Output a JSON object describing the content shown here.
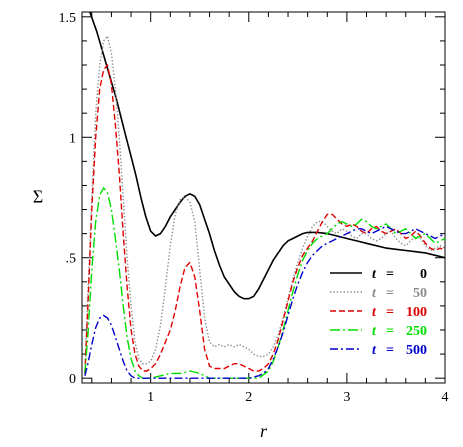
{
  "chart_data": {
    "type": "line",
    "title": "",
    "xlabel": "r",
    "ylabel": "Σ",
    "xlim": [
      0.3,
      4.0
    ],
    "ylim": [
      -0.02,
      1.52
    ],
    "xticks": [
      1,
      2,
      3,
      4
    ],
    "xtick_labels": [
      "1",
      "2",
      "3",
      "4"
    ],
    "yticks": [
      0,
      0.5,
      1.0,
      1.5
    ],
    "ytick_labels": [
      "0",
      ".5",
      "1",
      "1.5"
    ],
    "grid": false,
    "legend_position": "center-right",
    "series": [
      {
        "name": "t = 0",
        "legend_t": "t",
        "legend_eq": "=",
        "legend_val": "0",
        "color": "#000000",
        "dash": "",
        "width": 1.6,
        "x": [
          0.38,
          0.45,
          0.5,
          0.55,
          0.6,
          0.65,
          0.7,
          0.75,
          0.8,
          0.85,
          0.9,
          0.95,
          1.0,
          1.05,
          1.1,
          1.15,
          1.2,
          1.25,
          1.3,
          1.35,
          1.4,
          1.45,
          1.5,
          1.55,
          1.6,
          1.65,
          1.7,
          1.75,
          1.8,
          1.85,
          1.9,
          1.95,
          2.0,
          2.05,
          2.1,
          2.15,
          2.2,
          2.25,
          2.3,
          2.35,
          2.4,
          2.45,
          2.5,
          2.55,
          2.6,
          2.65,
          2.7,
          2.8,
          2.9,
          3.0,
          3.1,
          3.2,
          3.3,
          3.4,
          3.5,
          3.6,
          3.7,
          3.8,
          3.9,
          4.0
        ],
        "y": [
          1.52,
          1.44,
          1.37,
          1.3,
          1.23,
          1.16,
          1.08,
          1.0,
          0.92,
          0.84,
          0.75,
          0.67,
          0.61,
          0.59,
          0.6,
          0.63,
          0.67,
          0.7,
          0.73,
          0.755,
          0.765,
          0.755,
          0.72,
          0.66,
          0.6,
          0.53,
          0.47,
          0.42,
          0.39,
          0.36,
          0.34,
          0.33,
          0.33,
          0.34,
          0.37,
          0.41,
          0.45,
          0.49,
          0.52,
          0.55,
          0.57,
          0.58,
          0.59,
          0.6,
          0.605,
          0.605,
          0.605,
          0.6,
          0.59,
          0.58,
          0.57,
          0.56,
          0.55,
          0.54,
          0.535,
          0.53,
          0.525,
          0.52,
          0.51,
          0.5
        ]
      },
      {
        "name": "t = 50",
        "legend_t": "t",
        "legend_eq": "=",
        "legend_val": "50",
        "color": "#8c8c8c",
        "dash": "1.4,2",
        "width": 1.4,
        "x": [
          0.33,
          0.36,
          0.4,
          0.44,
          0.48,
          0.52,
          0.56,
          0.6,
          0.64,
          0.68,
          0.72,
          0.76,
          0.8,
          0.84,
          0.88,
          0.92,
          0.96,
          1.0,
          1.05,
          1.1,
          1.15,
          1.2,
          1.25,
          1.3,
          1.35,
          1.4,
          1.45,
          1.5,
          1.55,
          1.6,
          1.65,
          1.7,
          1.75,
          1.8,
          1.85,
          1.9,
          1.95,
          2.0,
          2.05,
          2.1,
          2.15,
          2.2,
          2.25,
          2.3,
          2.35,
          2.4,
          2.45,
          2.5,
          2.55,
          2.6,
          2.65,
          2.7,
          2.75,
          2.8,
          2.85,
          2.9,
          2.95,
          3.0,
          3.05,
          3.1,
          3.15,
          3.2,
          3.25,
          3.3,
          3.35,
          3.4,
          3.45,
          3.5,
          3.55,
          3.6,
          3.65,
          3.7,
          3.75,
          3.8,
          3.85,
          3.9,
          3.95,
          4.0
        ],
        "y": [
          0.02,
          0.35,
          0.75,
          1.1,
          1.3,
          1.4,
          1.42,
          1.35,
          1.2,
          1.0,
          0.75,
          0.5,
          0.3,
          0.15,
          0.08,
          0.06,
          0.06,
          0.07,
          0.12,
          0.22,
          0.38,
          0.55,
          0.68,
          0.74,
          0.755,
          0.73,
          0.65,
          0.45,
          0.25,
          0.15,
          0.13,
          0.14,
          0.13,
          0.14,
          0.13,
          0.14,
          0.13,
          0.12,
          0.1,
          0.09,
          0.09,
          0.1,
          0.13,
          0.18,
          0.25,
          0.33,
          0.41,
          0.48,
          0.54,
          0.59,
          0.63,
          0.65,
          0.65,
          0.63,
          0.61,
          0.6,
          0.62,
          0.61,
          0.59,
          0.58,
          0.6,
          0.6,
          0.58,
          0.57,
          0.58,
          0.6,
          0.61,
          0.58,
          0.56,
          0.55,
          0.57,
          0.59,
          0.58,
          0.55,
          0.53,
          0.54,
          0.55,
          0.54
        ]
      },
      {
        "name": "t = 100",
        "legend_t": "t",
        "legend_eq": "=",
        "legend_val": "100",
        "color": "#e00000",
        "dash": "6,3",
        "width": 1.4,
        "x": [
          0.33,
          0.36,
          0.4,
          0.44,
          0.48,
          0.52,
          0.56,
          0.6,
          0.64,
          0.68,
          0.72,
          0.76,
          0.8,
          0.84,
          0.88,
          0.92,
          0.96,
          1.0,
          1.05,
          1.1,
          1.15,
          1.2,
          1.25,
          1.3,
          1.35,
          1.4,
          1.45,
          1.5,
          1.55,
          1.6,
          1.65,
          1.7,
          1.75,
          1.8,
          1.85,
          1.9,
          1.95,
          2.0,
          2.05,
          2.1,
          2.15,
          2.2,
          2.25,
          2.3,
          2.35,
          2.4,
          2.45,
          2.5,
          2.55,
          2.6,
          2.65,
          2.7,
          2.75,
          2.8,
          2.85,
          2.9,
          2.95,
          3.0,
          3.05,
          3.1,
          3.15,
          3.2,
          3.25,
          3.3,
          3.35,
          3.4,
          3.45,
          3.5,
          3.55,
          3.6,
          3.65,
          3.7,
          3.75,
          3.8,
          3.85,
          3.9,
          3.95,
          4.0
        ],
        "y": [
          0.02,
          0.3,
          0.7,
          1.0,
          1.2,
          1.28,
          1.3,
          1.22,
          1.05,
          0.85,
          0.6,
          0.38,
          0.2,
          0.1,
          0.05,
          0.03,
          0.03,
          0.04,
          0.06,
          0.1,
          0.15,
          0.2,
          0.28,
          0.38,
          0.46,
          0.48,
          0.42,
          0.28,
          0.12,
          0.05,
          0.04,
          0.04,
          0.04,
          0.05,
          0.06,
          0.06,
          0.05,
          0.04,
          0.03,
          0.03,
          0.04,
          0.06,
          0.1,
          0.16,
          0.24,
          0.32,
          0.4,
          0.46,
          0.51,
          0.54,
          0.57,
          0.61,
          0.65,
          0.68,
          0.68,
          0.66,
          0.64,
          0.63,
          0.64,
          0.63,
          0.61,
          0.6,
          0.62,
          0.63,
          0.61,
          0.6,
          0.61,
          0.62,
          0.6,
          0.58,
          0.59,
          0.61,
          0.59,
          0.56,
          0.54,
          0.53,
          0.54,
          0.53
        ]
      },
      {
        "name": "t = 250",
        "legend_t": "t",
        "legend_eq": "=",
        "legend_val": "250",
        "color": "#00dd00",
        "dash": "10,3,2,3",
        "width": 1.4,
        "x": [
          0.33,
          0.36,
          0.4,
          0.44,
          0.48,
          0.52,
          0.56,
          0.6,
          0.64,
          0.68,
          0.72,
          0.76,
          0.8,
          0.84,
          0.88,
          0.92,
          0.96,
          1.0,
          1.1,
          1.2,
          1.3,
          1.4,
          1.5,
          1.6,
          1.7,
          1.8,
          1.9,
          2.0,
          2.1,
          2.2,
          2.25,
          2.3,
          2.35,
          2.4,
          2.45,
          2.5,
          2.55,
          2.6,
          2.65,
          2.7,
          2.75,
          2.8,
          2.85,
          2.9,
          2.95,
          3.0,
          3.05,
          3.1,
          3.15,
          3.2,
          3.25,
          3.3,
          3.35,
          3.4,
          3.45,
          3.5,
          3.55,
          3.6,
          3.65,
          3.7,
          3.75,
          3.8,
          3.85,
          3.9,
          3.95,
          4.0
        ],
        "y": [
          0.02,
          0.18,
          0.45,
          0.65,
          0.76,
          0.79,
          0.77,
          0.7,
          0.58,
          0.45,
          0.3,
          0.17,
          0.08,
          0.03,
          0.01,
          0.0,
          0.0,
          0.0,
          0.01,
          0.02,
          0.02,
          0.03,
          0.02,
          0.0,
          0.0,
          0.0,
          0.0,
          0.0,
          0.0,
          0.03,
          0.07,
          0.13,
          0.2,
          0.28,
          0.36,
          0.43,
          0.49,
          0.53,
          0.56,
          0.58,
          0.59,
          0.6,
          0.62,
          0.64,
          0.65,
          0.64,
          0.63,
          0.64,
          0.66,
          0.65,
          0.63,
          0.62,
          0.63,
          0.64,
          0.62,
          0.6,
          0.61,
          0.62,
          0.6,
          0.58,
          0.59,
          0.6,
          0.58,
          0.56,
          0.57,
          0.58
        ]
      },
      {
        "name": "t = 500",
        "legend_t": "t",
        "legend_eq": "=",
        "legend_val": "500",
        "color": "#0000cc",
        "dash": "8,3,2,3",
        "width": 1.4,
        "x": [
          0.33,
          0.36,
          0.4,
          0.44,
          0.48,
          0.52,
          0.56,
          0.6,
          0.64,
          0.68,
          0.72,
          0.76,
          0.8,
          0.84,
          0.88,
          0.92,
          0.96,
          1.0,
          1.1,
          1.2,
          1.3,
          1.4,
          1.5,
          1.6,
          1.7,
          1.8,
          1.9,
          2.0,
          2.1,
          2.15,
          2.2,
          2.25,
          2.3,
          2.35,
          2.4,
          2.45,
          2.5,
          2.55,
          2.6,
          2.65,
          2.7,
          2.75,
          2.8,
          2.85,
          2.9,
          2.95,
          3.0,
          3.05,
          3.1,
          3.15,
          3.2,
          3.25,
          3.3,
          3.35,
          3.4,
          3.45,
          3.5,
          3.55,
          3.6,
          3.65,
          3.7,
          3.75,
          3.8,
          3.85,
          3.9,
          3.95,
          4.0
        ],
        "y": [
          0.01,
          0.06,
          0.14,
          0.21,
          0.25,
          0.26,
          0.25,
          0.22,
          0.17,
          0.12,
          0.07,
          0.03,
          0.01,
          0.0,
          0.0,
          0.0,
          0.0,
          0.0,
          0.0,
          0.0,
          0.0,
          0.0,
          0.0,
          0.0,
          0.0,
          0.0,
          0.0,
          0.0,
          0.01,
          0.02,
          0.04,
          0.08,
          0.13,
          0.19,
          0.26,
          0.33,
          0.39,
          0.44,
          0.48,
          0.51,
          0.53,
          0.55,
          0.56,
          0.57,
          0.58,
          0.59,
          0.6,
          0.61,
          0.62,
          0.62,
          0.61,
          0.6,
          0.61,
          0.62,
          0.63,
          0.62,
          0.61,
          0.6,
          0.6,
          0.61,
          0.62,
          0.61,
          0.6,
          0.59,
          0.58,
          0.59,
          0.6
        ]
      }
    ]
  }
}
